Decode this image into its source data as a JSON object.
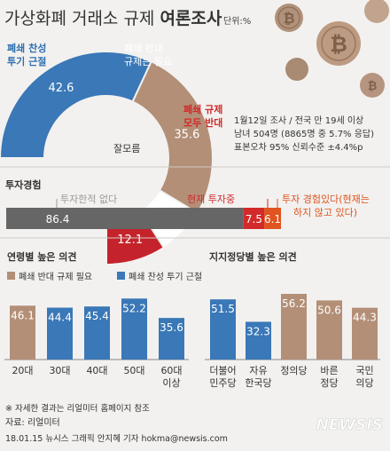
{
  "colors": {
    "support": "#3a78b7",
    "oppose": "#b38f77",
    "unsure": "#ffffff",
    "both_oppose": "#c4232b",
    "investor_bar": "#666666",
    "accent_red": "#d22a2a",
    "accent_orange": "#e0541f",
    "bg": "#f2f1ef",
    "text": "#333333"
  },
  "header": {
    "title_main": "가상화폐 거래소 규제",
    "title_bold": "여론조사",
    "unit": "단위:%"
  },
  "survey": {
    "line1": "1월12일 조사 / 전국 만 19세 이상",
    "line2": "남녀 504명 (8865명 중 5.7% 응답)",
    "line3": "표본오차 95% 신뢰수준 ±4.4%p"
  },
  "pie_labels": {
    "support": [
      "폐쇄 찬성",
      "투기 근절"
    ],
    "oppose": [
      "폐쇄 반대",
      "규제는 필요"
    ],
    "both": [
      "폐쇄 규제",
      "모두 반대"
    ],
    "unsure": "잘모름"
  },
  "invest": {
    "title": "투자경험",
    "none_label": "투자한적 없다",
    "current_label": "현재 투자중",
    "past_label": [
      "투자 경험있다(현재는",
      "하지 않고 있다)"
    ]
  },
  "age_section": {
    "title": "연령별 높은 의견",
    "legend_oppose": "폐쇄 반대 규제 필요",
    "legend_support": "폐쇄 찬성 투기 근절"
  },
  "party_section": {
    "title": "지지정당별 높은 의견"
  },
  "footer": {
    "note": "※ 자세한 결과는 리얼미터 홈페이지 참조",
    "source": "자료: 리얼미터",
    "credit": "18.01.15 뉴시스 그래픽 안지혜 기자 hokma@newsis.com",
    "logo": "NEWSIS"
  },
  "chart_data": [
    {
      "type": "pie",
      "title": "가상화폐 거래소 규제 여론조사",
      "unit": "%",
      "slices": [
        {
          "label": "폐쇄 찬성 투기 근절",
          "value": 42.6,
          "group": "support"
        },
        {
          "label": "폐쇄 반대 규제는 필요",
          "value": 35.6,
          "group": "oppose"
        },
        {
          "label": "잘모름",
          "value": 9.7,
          "group": "unsure"
        },
        {
          "label": "폐쇄 규제 모두 반대",
          "value": 12.1,
          "group": "both"
        }
      ]
    },
    {
      "type": "bar",
      "title": "투자경험",
      "orientation": "horizontal",
      "stacked": true,
      "categories": [
        "투자한적 없다",
        "현재 투자중",
        "투자 경험있다(현재는 하지 않고 있다)"
      ],
      "values": [
        86.4,
        7.5,
        6.1
      ]
    },
    {
      "type": "bar",
      "title": "연령별 높은 의견",
      "categories": [
        "20대",
        "30대",
        "40대",
        "50대",
        "60대 이상"
      ],
      "values": [
        46.1,
        44.4,
        45.4,
        52.2,
        35.6
      ],
      "groups": [
        "oppose",
        "support",
        "support",
        "support",
        "support"
      ],
      "ylim": [
        0,
        60
      ]
    },
    {
      "type": "bar",
      "title": "지지정당별 높은 의견",
      "categories": [
        "더불어 민주당",
        "자유 한국당",
        "정의당",
        "바른 정당",
        "국민 의당"
      ],
      "values": [
        51.5,
        32.3,
        56.2,
        50.6,
        44.3
      ],
      "groups": [
        "support",
        "support",
        "oppose",
        "oppose",
        "oppose"
      ],
      "ylim": [
        0,
        60
      ]
    }
  ]
}
